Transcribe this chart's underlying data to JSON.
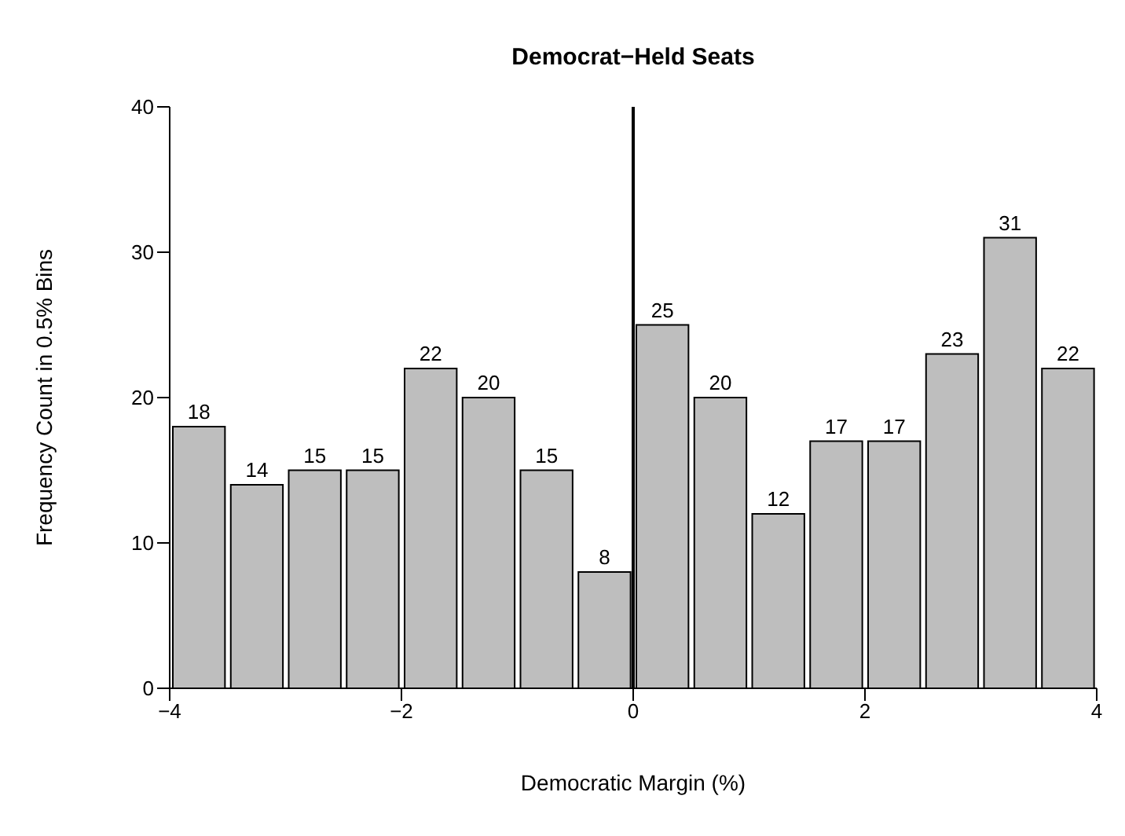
{
  "chart_data": {
    "type": "histogram",
    "title": "Democrat−Held Seats",
    "xlabel": "Democratic Margin (%)",
    "ylabel": "Frequency Count in 0.5% Bins",
    "bins": [
      -4,
      -3.5,
      -3,
      -2.5,
      -2,
      -1.5,
      -1,
      -0.5,
      0,
      0.5,
      1,
      1.5,
      2,
      2.5,
      3,
      3.5,
      4
    ],
    "values": [
      18,
      14,
      15,
      15,
      22,
      20,
      15,
      8,
      25,
      20,
      12,
      17,
      17,
      23,
      31,
      22
    ],
    "color": "#bebebe",
    "xlim": [
      -4,
      4
    ],
    "xticks": [
      {
        "value": -4,
        "label": "−4"
      },
      {
        "value": -2,
        "label": "−2"
      },
      0,
      2,
      4
    ],
    "ylim": [
      0,
      40
    ],
    "yticks": [
      0,
      10,
      20,
      30,
      40
    ],
    "grid": false,
    "legend": false,
    "data_labels": true,
    "ref_lines": [
      {
        "axis": "x",
        "value": 0,
        "color": "#000000"
      }
    ]
  }
}
